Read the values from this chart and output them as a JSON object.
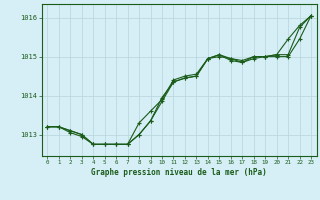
{
  "title": "Graphe pression niveau de la mer (hPa)",
  "background_color": "#d6eef5",
  "grid_color": "#b8d4dc",
  "line_color": "#1a5c1a",
  "xlim": [
    -0.5,
    23.5
  ],
  "ylim": [
    1012.45,
    1016.35
  ],
  "yticks": [
    1013,
    1014,
    1015,
    1016
  ],
  "xticks": [
    0,
    1,
    2,
    3,
    4,
    5,
    6,
    7,
    8,
    9,
    10,
    11,
    12,
    13,
    14,
    15,
    16,
    17,
    18,
    19,
    20,
    21,
    22,
    23
  ],
  "series1": {
    "x": [
      0,
      1,
      2,
      3,
      4,
      5,
      6,
      7,
      8,
      9,
      10,
      11,
      12,
      13,
      14,
      15,
      16,
      17,
      18,
      19,
      20,
      21,
      22,
      23
    ],
    "y": [
      1013.2,
      1013.2,
      1013.1,
      1013.0,
      1012.75,
      1012.75,
      1012.75,
      1012.75,
      1013.0,
      1013.35,
      1013.85,
      1014.35,
      1014.45,
      1014.5,
      1014.95,
      1015.0,
      1014.95,
      1014.9,
      1015.0,
      1015.0,
      1015.0,
      1015.0,
      1015.45,
      1016.05
    ]
  },
  "series2": {
    "x": [
      0,
      1,
      2,
      3,
      4,
      5,
      6,
      7,
      8,
      9,
      10,
      11,
      12,
      13,
      14,
      15,
      16,
      17,
      18,
      19,
      20,
      21,
      22,
      23
    ],
    "y": [
      1013.2,
      1013.2,
      1013.1,
      1013.0,
      1012.75,
      1012.75,
      1012.75,
      1012.75,
      1013.3,
      1013.6,
      1013.9,
      1014.4,
      1014.5,
      1014.55,
      1014.95,
      1015.05,
      1014.9,
      1014.85,
      1014.95,
      1015.0,
      1015.05,
      1015.05,
      1015.75,
      1016.05
    ]
  },
  "series3": {
    "x": [
      0,
      1,
      2,
      3,
      4,
      5,
      6,
      7,
      8,
      9,
      10,
      11,
      12,
      13,
      14,
      15,
      16,
      17,
      18,
      19,
      20,
      21,
      22,
      23
    ],
    "y": [
      1013.2,
      1013.2,
      1013.05,
      1012.95,
      1012.75,
      1012.75,
      1012.75,
      1012.75,
      1013.0,
      1013.35,
      1013.95,
      1014.35,
      1014.45,
      1014.5,
      1014.95,
      1015.05,
      1014.95,
      1014.85,
      1015.0,
      1015.0,
      1015.05,
      1015.45,
      1015.8,
      1016.05
    ]
  }
}
